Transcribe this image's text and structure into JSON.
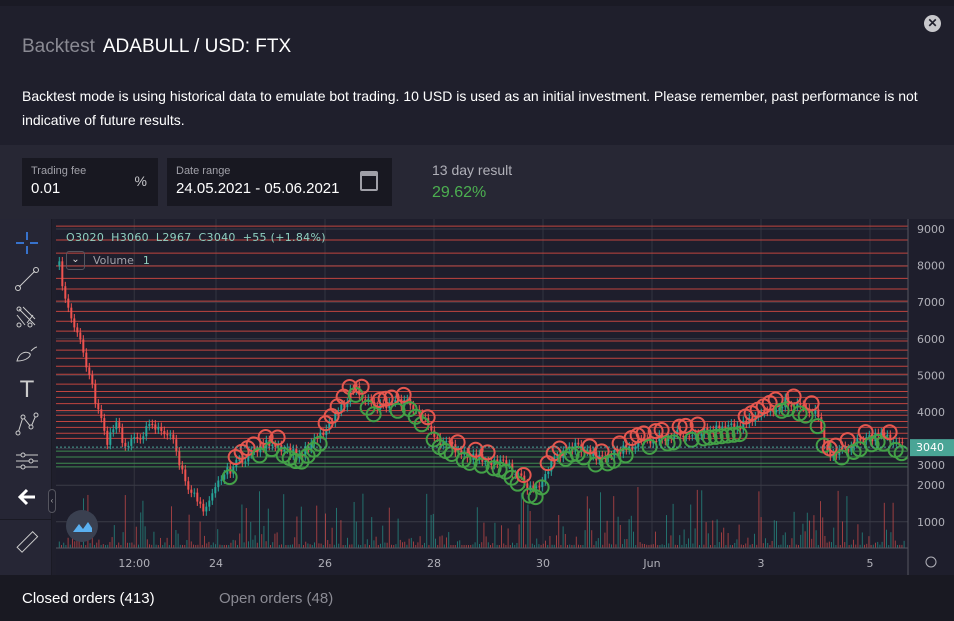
{
  "header": {
    "prefix": "Backtest",
    "title": "ADABULL / USD: FTX",
    "close_icon": "close-icon"
  },
  "description": "Backtest mode is using historical data to emulate bot trading. 10 USD is used as an initial investment. Please remember, past performance is not indicative of future results.",
  "settings": {
    "trading_fee": {
      "label": "Trading fee",
      "value": "0.01",
      "unit": "%"
    },
    "date_range": {
      "label": "Date range",
      "value": "24.05.2021 - 05.06.2021",
      "icon": "calendar-icon"
    },
    "result": {
      "label": "13 day result",
      "value": "29.62%",
      "color": "#4caf50"
    }
  },
  "toolbar": {
    "tools": [
      "crosshair-icon",
      "trend-line-icon",
      "pitchfork-icon",
      "brush-icon",
      "text-icon",
      "pattern-icon",
      "measure-icon",
      "back-arrow-icon",
      "ruler-icon"
    ],
    "text_tool_glyph": "T"
  },
  "chart": {
    "ohlc": {
      "open": "O3020",
      "high": "H3060",
      "low": "L2967",
      "close": "C3040",
      "change": "+55 (+1.84%)"
    },
    "volume_label": "Volume",
    "volume_value": "1",
    "last_price": "3040",
    "colors": {
      "up": "#26a69a",
      "down": "#ef5350",
      "buy": "#43a047",
      "sell": "#e5574f",
      "level": "#c0443e",
      "buy_level": "#3f8a4f",
      "last": "#4aa596"
    },
    "y_ticks": [
      "9000",
      "8000",
      "7000",
      "6000",
      "5000",
      "4000",
      "3000",
      "2000",
      "1000"
    ],
    "x_ticks": [
      {
        "label": "12:00",
        "date": "2021-05-22T12:00"
      },
      {
        "label": "24",
        "date": "2021-05-24T00:00"
      },
      {
        "label": "26",
        "date": "2021-05-26T00:00"
      },
      {
        "label": "28",
        "date": "2021-05-28T00:00"
      },
      {
        "label": "30",
        "date": "2021-05-30T00:00"
      },
      {
        "label": "Jun",
        "date": "2021-06-01T00:00"
      },
      {
        "label": "3",
        "date": "2021-06-03T00:00"
      },
      {
        "label": "5",
        "date": "2021-06-05T00:00"
      }
    ],
    "sell_levels": [
      9080,
      8700,
      8340,
      7990,
      7650,
      7360,
      7030,
      6750,
      6480,
      6210,
      5940,
      5690,
      5470,
      5250,
      5030,
      4760,
      4560,
      4400,
      4230,
      4040,
      3910,
      3740,
      3580,
      3420,
      3280
    ],
    "buy_levels": [
      2930,
      2770,
      2600,
      2500
    ],
    "price_series": [
      [
        "2021-05-21T03:00",
        8000
      ],
      [
        "2021-05-21T06:00",
        7000
      ],
      [
        "2021-05-21T12:00",
        6000
      ],
      [
        "2021-05-21T19:00",
        4300
      ],
      [
        "2021-05-22T00:00",
        3200
      ],
      [
        "2021-05-22T04:00",
        3800
      ],
      [
        "2021-05-22T08:00",
        3000
      ],
      [
        "2021-05-22T19:00",
        3600
      ],
      [
        "2021-05-23T04:00",
        3400
      ],
      [
        "2021-05-23T10:00",
        2200
      ],
      [
        "2021-05-23T19:00",
        1200
      ],
      [
        "2021-05-24T02:00",
        2200
      ],
      [
        "2021-05-24T11:00",
        2700
      ],
      [
        "2021-05-25T00:00",
        3200
      ],
      [
        "2021-05-25T13:00",
        2800
      ],
      [
        "2021-05-26T02:00",
        3600
      ],
      [
        "2021-05-26T13:00",
        4700
      ],
      [
        "2021-05-26T22:00",
        4100
      ],
      [
        "2021-05-27T13:00",
        4300
      ],
      [
        "2021-05-28T03:00",
        3200
      ],
      [
        "2021-05-28T16:00",
        2800
      ],
      [
        "2021-05-29T07:00",
        2600
      ],
      [
        "2021-05-29T20:00",
        1800
      ],
      [
        "2021-05-30T05:00",
        2700
      ],
      [
        "2021-05-30T14:00",
        3100
      ],
      [
        "2021-05-31T01:00",
        2700
      ],
      [
        "2021-05-31T19:00",
        3200
      ],
      [
        "2021-06-01T12:00",
        3400
      ],
      [
        "2021-06-02T15:00",
        3600
      ],
      [
        "2021-06-03T11:00",
        4300
      ],
      [
        "2021-06-04T00:00",
        4000
      ],
      [
        "2021-06-04T06:00",
        2800
      ],
      [
        "2021-06-04T20:00",
        3200
      ],
      [
        "2021-06-05T04:00",
        3400
      ],
      [
        "2021-06-05T15:00",
        3040
      ]
    ]
  },
  "tabs": [
    {
      "label": "Closed orders (413)",
      "active": true
    },
    {
      "label": "Open orders (48)",
      "active": false
    }
  ]
}
